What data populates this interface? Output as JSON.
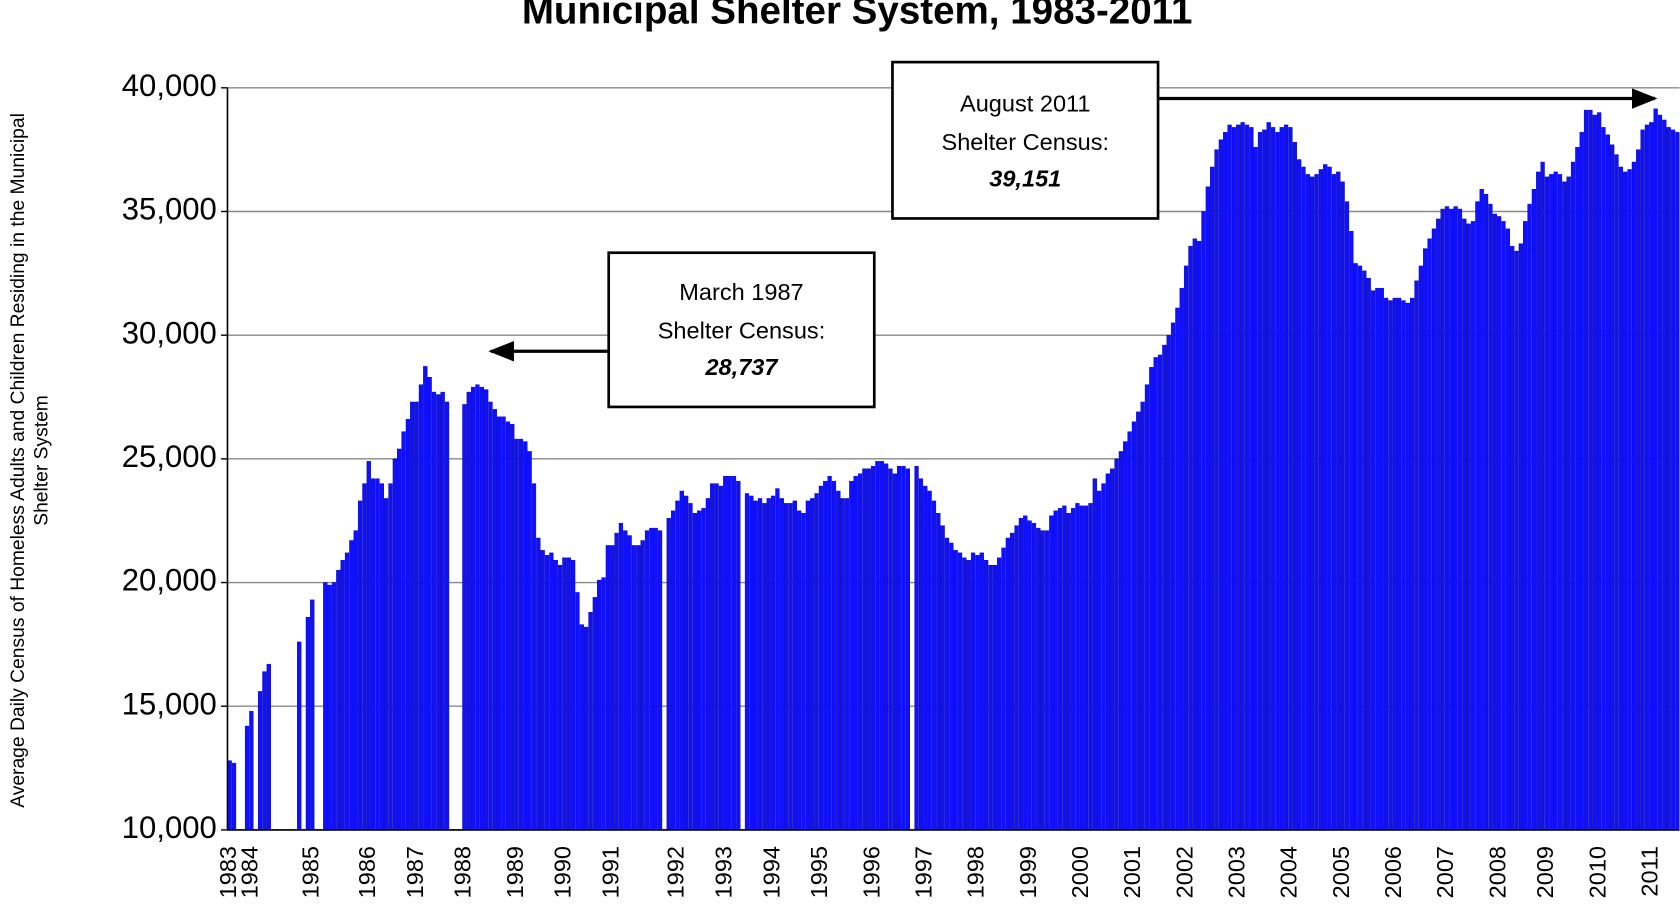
{
  "chart_data": {
    "type": "bar",
    "title": "Municipal Shelter System, 1983-2011",
    "y_label_lines": [
      "Average Daily Census of Homeless Adults and Children Residing in the Municipal",
      "Shelter System"
    ],
    "color": "#1010ff",
    "grid": true,
    "ylim": [
      10000,
      40000
    ],
    "yticks": [
      {
        "value": 10000,
        "label": "10,000"
      },
      {
        "value": 15000,
        "label": "15,000"
      },
      {
        "value": 20000,
        "label": "20,000"
      },
      {
        "value": 25000,
        "label": "25,000"
      },
      {
        "value": 30000,
        "label": "30,000"
      },
      {
        "value": 35000,
        "label": "35,000"
      },
      {
        "value": 40000,
        "label": "40,000"
      }
    ],
    "annotations": [
      {
        "lines": [
          "March 1987",
          "Shelter Census:"
        ],
        "value_label": "28,737"
      },
      {
        "lines": [
          "August 2011",
          "Shelter Census:"
        ],
        "value_label": "39,151"
      }
    ],
    "categories": [
      "1983",
      null,
      null,
      null,
      null,
      "1984",
      null,
      null,
      null,
      null,
      null,
      null,
      null,
      null,
      null,
      null,
      null,
      null,
      null,
      "1985",
      null,
      null,
      null,
      null,
      null,
      null,
      null,
      null,
      null,
      null,
      null,
      null,
      "1986",
      null,
      null,
      null,
      null,
      null,
      null,
      null,
      null,
      null,
      null,
      "1987",
      null,
      null,
      null,
      null,
      null,
      null,
      null,
      null,
      null,
      null,
      "1988",
      null,
      null,
      null,
      null,
      null,
      null,
      null,
      null,
      null,
      null,
      null,
      "1989",
      null,
      null,
      null,
      null,
      null,
      null,
      null,
      null,
      null,
      null,
      "1990",
      null,
      null,
      null,
      null,
      null,
      null,
      null,
      null,
      null,
      null,
      "1991",
      null,
      null,
      null,
      null,
      null,
      null,
      null,
      null,
      null,
      null,
      null,
      null,
      null,
      null,
      "1992",
      null,
      null,
      null,
      null,
      null,
      null,
      null,
      null,
      null,
      null,
      "1993",
      null,
      null,
      null,
      null,
      null,
      null,
      null,
      null,
      null,
      null,
      "1994",
      null,
      null,
      null,
      null,
      null,
      null,
      null,
      null,
      null,
      null,
      "1995",
      null,
      null,
      null,
      null,
      null,
      null,
      null,
      null,
      null,
      null,
      null,
      "1996",
      null,
      null,
      null,
      null,
      null,
      null,
      null,
      null,
      null,
      null,
      null,
      "1997",
      null,
      null,
      null,
      null,
      null,
      null,
      null,
      null,
      null,
      null,
      null,
      "1998",
      null,
      null,
      null,
      null,
      null,
      null,
      null,
      null,
      null,
      null,
      null,
      "1999",
      null,
      null,
      null,
      null,
      null,
      null,
      null,
      null,
      null,
      null,
      null,
      "2000",
      null,
      null,
      null,
      null,
      null,
      null,
      null,
      null,
      null,
      null,
      null,
      "2001",
      null,
      null,
      null,
      null,
      null,
      null,
      null,
      null,
      null,
      null,
      null,
      "2002",
      null,
      null,
      null,
      null,
      null,
      null,
      null,
      null,
      null,
      null,
      null,
      "2003",
      null,
      null,
      null,
      null,
      null,
      null,
      null,
      null,
      null,
      null,
      null,
      "2004",
      null,
      null,
      null,
      null,
      null,
      null,
      null,
      null,
      null,
      null,
      null,
      "2005",
      null,
      null,
      null,
      null,
      null,
      null,
      null,
      null,
      null,
      null,
      null,
      "2006",
      null,
      null,
      null,
      null,
      null,
      null,
      null,
      null,
      null,
      null,
      null,
      "2007",
      null,
      null,
      null,
      null,
      null,
      null,
      null,
      null,
      null,
      null,
      null,
      "2008",
      null,
      null,
      null,
      null,
      null,
      null,
      null,
      null,
      null,
      null,
      "2009",
      null,
      null,
      null,
      null,
      null,
      null,
      null,
      null,
      null,
      null,
      null,
      "2010",
      null,
      null,
      null,
      null,
      null,
      null,
      null,
      null,
      null,
      null,
      null,
      "2011",
      null,
      null,
      null,
      null,
      null,
      null
    ],
    "values": [
      12800,
      12700,
      null,
      null,
      14200,
      14800,
      null,
      15600,
      16400,
      16700,
      null,
      null,
      null,
      null,
      null,
      null,
      17600,
      null,
      18600,
      19300,
      null,
      null,
      20000,
      19900,
      20000,
      20500,
      20900,
      21200,
      21700,
      22100,
      23300,
      24000,
      24900,
      24200,
      24200,
      24000,
      23400,
      24000,
      25000,
      25400,
      26100,
      26600,
      27300,
      27300,
      28000,
      28737,
      28300,
      27700,
      27600,
      27700,
      27300,
      null,
      null,
      null,
      27200,
      27700,
      27900,
      28000,
      27900,
      27800,
      27300,
      27000,
      26700,
      26700,
      26500,
      26400,
      25800,
      25800,
      25700,
      25300,
      24000,
      21800,
      21300,
      21100,
      21200,
      20900,
      20700,
      21000,
      21000,
      20900,
      19600,
      18300,
      18200,
      18800,
      19400,
      20100,
      20200,
      21500,
      21500,
      22000,
      22400,
      22100,
      21900,
      21500,
      21500,
      21700,
      22100,
      22200,
      22200,
      22100,
      null,
      22600,
      22900,
      23300,
      23700,
      23500,
      23200,
      22800,
      22900,
      23000,
      23400,
      24000,
      24000,
      23900,
      24300,
      24300,
      24300,
      24100,
      null,
      23600,
      23500,
      23300,
      23400,
      23200,
      23400,
      23500,
      23800,
      23400,
      23200,
      23200,
      23300,
      22900,
      22800,
      23300,
      23400,
      23600,
      23900,
      24100,
      24300,
      24100,
      23700,
      23400,
      23400,
      24100,
      24300,
      24400,
      24600,
      24600,
      24700,
      24900,
      24900,
      24800,
      24600,
      24400,
      24700,
      24700,
      24600,
      null,
      24700,
      24200,
      23900,
      23700,
      23300,
      22800,
      22300,
      21800,
      21600,
      21300,
      21200,
      21000,
      20900,
      21200,
      21100,
      21200,
      20900,
      20700,
      20700,
      21000,
      21400,
      21800,
      22000,
      22300,
      22600,
      22700,
      22500,
      22400,
      22200,
      22100,
      22100,
      22700,
      22900,
      23000,
      23100,
      22800,
      23000,
      23200,
      23100,
      23100,
      23200,
      24200,
      23700,
      24000,
      24400,
      24600,
      25000,
      25300,
      25700,
      26100,
      26500,
      26900,
      27300,
      28000,
      28700,
      29100,
      29200,
      29600,
      30000,
      30500,
      31100,
      31900,
      32800,
      33600,
      33900,
      33800,
      35000,
      36000,
      36800,
      37500,
      37900,
      38200,
      38500,
      38400,
      38500,
      38600,
      38500,
      38400,
      37600,
      38200,
      38300,
      38600,
      38400,
      38200,
      38400,
      38500,
      38400,
      37800,
      37100,
      36800,
      36500,
      36400,
      36500,
      36700,
      36900,
      36800,
      36500,
      36600,
      36200,
      35400,
      34200,
      32900,
      32800,
      32600,
      32300,
      31800,
      31900,
      31900,
      31500,
      31400,
      31500,
      31500,
      31400,
      31300,
      31500,
      32200,
      32800,
      33500,
      33900,
      34300,
      34700,
      35100,
      35200,
      35100,
      35200,
      35100,
      34700,
      34500,
      34600,
      35400,
      35900,
      35700,
      35300,
      34900,
      34800,
      34600,
      34300,
      33600,
      33400,
      33700,
      34600,
      35300,
      35900,
      36600,
      37000,
      36400,
      36500,
      36600,
      36500,
      36200,
      36400,
      37000,
      37600,
      38200,
      39100,
      39100,
      38900,
      39000,
      38400,
      38100,
      37700,
      37300,
      36800,
      36600,
      36700,
      37000,
      37500,
      38300,
      38500,
      38600,
      39151,
      38900,
      38700,
      38400,
      38300,
      38200
    ]
  }
}
